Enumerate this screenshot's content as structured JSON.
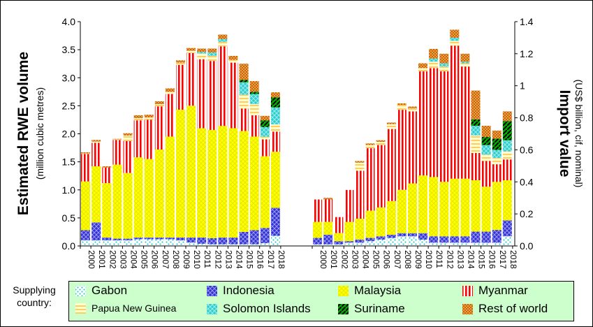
{
  "chart_data": {
    "type": "bar",
    "stacked": true,
    "categories": [
      "2000",
      "2001",
      "2002",
      "2003",
      "2004",
      "2005",
      "2006",
      "2007",
      "2008",
      "2009",
      "2010",
      "2011",
      "2012",
      "2013",
      "2014",
      "2015",
      "2016",
      "2017",
      "2018"
    ],
    "left_panel": {
      "ylabel": "Estimated RWE volume",
      "ylabel_sub": "(million cubic metres)",
      "ylim": [
        0,
        4.0
      ],
      "ticks": [
        "0.0",
        "0.5",
        "1.0",
        "1.5",
        "2.0",
        "2.5",
        "3.0",
        "3.5",
        "4.0"
      ],
      "series": [
        {
          "name": "Gabon",
          "values": [
            0.1,
            0.1,
            0.1,
            0.1,
            0.1,
            0.12,
            0.12,
            0.12,
            0.12,
            0.1,
            0.06,
            0.04,
            0.03,
            0.03,
            0.03,
            0.03,
            0.03,
            0.05,
            0.18
          ]
        },
        {
          "name": "Indonesia",
          "values": [
            0.18,
            0.32,
            0.05,
            0.03,
            0.03,
            0.03,
            0.03,
            0.03,
            0.03,
            0.05,
            0.09,
            0.11,
            0.11,
            0.12,
            0.12,
            0.22,
            0.25,
            0.27,
            0.5
          ]
        },
        {
          "name": "Malaysia",
          "values": [
            0.87,
            1.0,
            0.97,
            1.32,
            1.17,
            1.43,
            1.4,
            1.57,
            1.8,
            2.28,
            2.35,
            1.95,
            1.93,
            1.99,
            1.95,
            1.8,
            1.67,
            1.28,
            1.0
          ]
        },
        {
          "name": "Myanmar",
          "values": [
            0.49,
            0.42,
            0.28,
            0.44,
            0.57,
            0.66,
            0.7,
            0.77,
            0.76,
            0.8,
            0.94,
            1.23,
            1.23,
            1.42,
            1.17,
            0.4,
            0.38,
            0.3,
            0.36
          ]
        },
        {
          "name": "Papua New Guinea",
          "values": [
            0.01,
            0.02,
            0.0,
            0.01,
            0.1,
            0.04,
            0.04,
            0.04,
            0.04,
            0.04,
            0.04,
            0.1,
            0.09,
            0.08,
            0.05,
            0.25,
            0.2,
            0.05,
            0.13
          ]
        },
        {
          "name": "Solomon Islands",
          "values": [
            0.0,
            0.0,
            0.0,
            0.0,
            0.0,
            0.0,
            0.0,
            0.0,
            0.0,
            0.0,
            0.0,
            0.03,
            0.06,
            0.05,
            0.0,
            0.22,
            0.18,
            0.17,
            0.3
          ]
        },
        {
          "name": "Suriname",
          "values": [
            0.0,
            0.0,
            0.0,
            0.0,
            0.0,
            0.0,
            0.0,
            0.0,
            0.0,
            0.0,
            0.0,
            0.0,
            0.0,
            0.0,
            0.0,
            0.04,
            0.04,
            0.12,
            0.18
          ]
        },
        {
          "name": "Rest of world",
          "values": [
            0.02,
            0.03,
            0.02,
            0.01,
            0.04,
            0.05,
            0.05,
            0.05,
            0.06,
            0.04,
            0.05,
            0.06,
            0.07,
            0.08,
            0.07,
            0.29,
            0.19,
            0.08,
            0.09
          ]
        }
      ]
    },
    "right_panel": {
      "ylabel": "Import value",
      "ylabel_sub": "(US$ billion,  cif, nominal)",
      "ylim": [
        0,
        1.4
      ],
      "ticks": [
        "0.0",
        "0.2",
        "0.4",
        "0.6",
        "0.8",
        "1",
        "1.2",
        "1.4"
      ],
      "series": [
        {
          "name": "Gabon",
          "values": [
            0.01,
            0.01,
            0.01,
            0.02,
            0.02,
            0.03,
            0.04,
            0.05,
            0.06,
            0.06,
            0.04,
            0.02,
            0.02,
            0.02,
            0.02,
            0.02,
            0.02,
            0.02,
            0.06
          ]
        },
        {
          "name": "Indonesia",
          "values": [
            0.04,
            0.06,
            0.02,
            0.01,
            0.02,
            0.02,
            0.02,
            0.02,
            0.02,
            0.02,
            0.04,
            0.04,
            0.04,
            0.04,
            0.04,
            0.07,
            0.07,
            0.08,
            0.1
          ]
        },
        {
          "name": "Malaysia",
          "values": [
            0.1,
            0.08,
            0.05,
            0.12,
            0.13,
            0.17,
            0.18,
            0.21,
            0.27,
            0.31,
            0.36,
            0.37,
            0.34,
            0.36,
            0.36,
            0.32,
            0.28,
            0.3,
            0.25
          ]
        },
        {
          "name": "Myanmar",
          "values": [
            0.14,
            0.14,
            0.1,
            0.2,
            0.3,
            0.39,
            0.39,
            0.45,
            0.5,
            0.45,
            0.65,
            0.68,
            0.69,
            0.83,
            0.7,
            0.17,
            0.16,
            0.11,
            0.13
          ]
        },
        {
          "name": "Papua New Guinea",
          "values": [
            0.0,
            0.0,
            0.0,
            0.0,
            0.05,
            0.02,
            0.02,
            0.03,
            0.03,
            0.02,
            0.02,
            0.04,
            0.03,
            0.03,
            0.02,
            0.11,
            0.04,
            0.04,
            0.05
          ]
        },
        {
          "name": "Solomon Islands",
          "values": [
            0.0,
            0.0,
            0.0,
            0.0,
            0.0,
            0.0,
            0.0,
            0.0,
            0.0,
            0.0,
            0.0,
            0.02,
            0.02,
            0.02,
            0.01,
            0.06,
            0.06,
            0.05,
            0.07
          ]
        },
        {
          "name": "Suriname",
          "values": [
            0.0,
            0.0,
            0.0,
            0.0,
            0.0,
            0.0,
            0.0,
            0.0,
            0.0,
            0.0,
            0.0,
            0.0,
            0.0,
            0.0,
            0.0,
            0.04,
            0.05,
            0.07,
            0.12
          ]
        },
        {
          "name": "Rest of world",
          "values": [
            0.0,
            0.01,
            0.0,
            0.0,
            0.01,
            0.01,
            0.01,
            0.01,
            0.01,
            0.01,
            0.03,
            0.06,
            0.06,
            0.05,
            0.05,
            0.18,
            0.07,
            0.05,
            0.06
          ]
        }
      ]
    }
  },
  "legend": {
    "title": "Supplying country:",
    "items": [
      {
        "name": "Gabon",
        "pattern": "gabon",
        "size": "normal"
      },
      {
        "name": "Indonesia",
        "pattern": "indonesia",
        "size": "normal"
      },
      {
        "name": "Malaysia",
        "pattern": "malaysia",
        "size": "normal"
      },
      {
        "name": "Myanmar",
        "pattern": "myanmar",
        "size": "normal"
      },
      {
        "name": "Papua New Guinea",
        "pattern": "png",
        "size": "small"
      },
      {
        "name": "Solomon Islands",
        "pattern": "solomon",
        "size": "normal"
      },
      {
        "name": "Suriname",
        "pattern": "suriname",
        "size": "normal"
      },
      {
        "name": "Rest of world",
        "pattern": "row",
        "size": "normal"
      }
    ]
  },
  "colors": {
    "gabon": "#33cccc",
    "indonesia": "#3333cc",
    "malaysia": "#ffff00",
    "myanmar": "#ff0000",
    "png": "#ffcc66",
    "solomon": "#33cccc",
    "suriname": "#00aa00",
    "row": "#cc6600",
    "legend_bg": "#ccffcc"
  }
}
